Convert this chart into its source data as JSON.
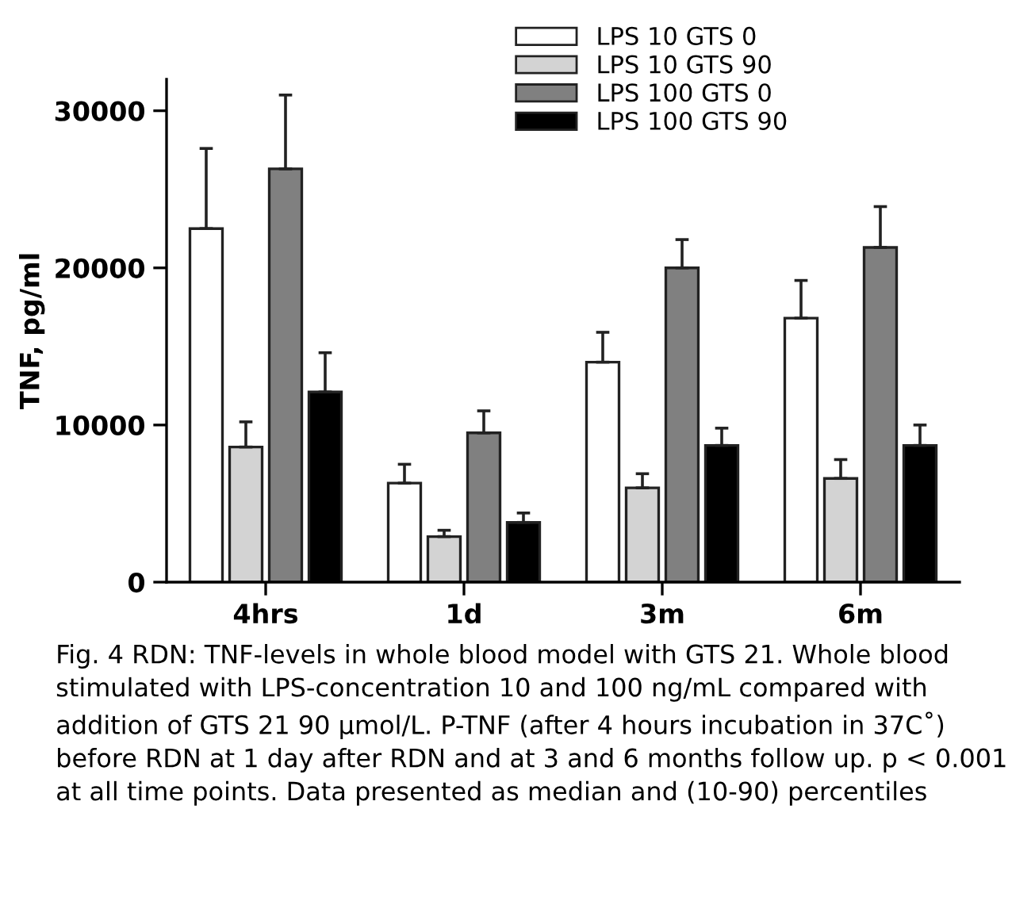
{
  "chart_data": {
    "type": "bar",
    "ylabel": "TNF, pg/ml",
    "categories": [
      "4hrs",
      "1d",
      "3m",
      "6m"
    ],
    "series": [
      {
        "name": "LPS 10 GTS 0",
        "color": "#ffffff",
        "values": [
          22500,
          6300,
          14000,
          16800
        ],
        "errors": [
          [
            22500,
            27600
          ],
          [
            6300,
            7500
          ],
          [
            14000,
            15900
          ],
          [
            16800,
            19200
          ]
        ]
      },
      {
        "name": "LPS 10 GTS 90",
        "color": "#d3d3d3",
        "values": [
          8600,
          2900,
          6000,
          6600
        ],
        "errors": [
          [
            8600,
            10200
          ],
          [
            2900,
            3300
          ],
          [
            6000,
            6900
          ],
          [
            6600,
            7800
          ]
        ]
      },
      {
        "name": "LPS 100 GTS 0",
        "color": "#808080",
        "values": [
          26300,
          9500,
          20000,
          21300
        ],
        "errors": [
          [
            26300,
            31000
          ],
          [
            9500,
            10900
          ],
          [
            20000,
            21800
          ],
          [
            21300,
            23900
          ]
        ]
      },
      {
        "name": "LPS 100 GTS 90",
        "color": "#000000",
        "values": [
          12100,
          3800,
          8700,
          8700
        ],
        "errors": [
          [
            12100,
            14600
          ],
          [
            3800,
            4400
          ],
          [
            8700,
            9800
          ],
          [
            8700,
            10000
          ]
        ]
      }
    ],
    "ylim": [
      0,
      32000
    ],
    "yticks": [
      0,
      10000,
      20000,
      30000
    ],
    "grid": false,
    "legend": "top right",
    "annotations": [
      "Fig. 4 RDN: TNF-levels in whole blood model with GTS 21. Whole blood stimulated with LPS-concentration 10 and 100 ng/mL compared with addition of GTS 21 90 µmol/L. P-TNF (after 4 hours incubation in 37C˚) before RDN at 1 day after RDN and at 3 and 6 months follow up. p < 0.001 at all time points. Data presented as median and (10-90) percentiles"
    ]
  }
}
